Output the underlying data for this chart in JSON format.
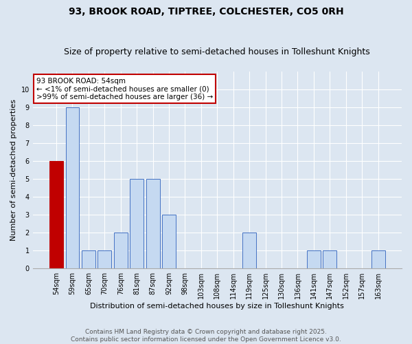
{
  "title": "93, BROOK ROAD, TIPTREE, COLCHESTER, CO5 0RH",
  "subtitle": "Size of property relative to semi-detached houses in Tolleshunt Knights",
  "xlabel": "Distribution of semi-detached houses by size in Tolleshunt Knights",
  "ylabel": "Number of semi-detached properties",
  "categories": [
    "54sqm",
    "59sqm",
    "65sqm",
    "70sqm",
    "76sqm",
    "81sqm",
    "87sqm",
    "92sqm",
    "98sqm",
    "103sqm",
    "108sqm",
    "114sqm",
    "119sqm",
    "125sqm",
    "130sqm",
    "136sqm",
    "141sqm",
    "147sqm",
    "152sqm",
    "157sqm",
    "163sqm"
  ],
  "values": [
    6,
    9,
    1,
    1,
    2,
    5,
    5,
    3,
    0,
    0,
    0,
    0,
    2,
    0,
    0,
    0,
    1,
    1,
    0,
    0,
    1
  ],
  "highlight_index": 0,
  "highlight_color": "#c00000",
  "bar_color": "#c5d9f1",
  "bar_edge_color": "#4472c4",
  "highlight_bar_edge_color": "#c00000",
  "bg_color": "#dce6f1",
  "grid_color": "#ffffff",
  "ylim": [
    0,
    11
  ],
  "yticks": [
    0,
    1,
    2,
    3,
    4,
    5,
    6,
    7,
    8,
    9,
    10,
    11
  ],
  "annotation_text": "93 BROOK ROAD: 54sqm\n← <1% of semi-detached houses are smaller (0)\n>99% of semi-detached houses are larger (36) →",
  "footer_line1": "Contains HM Land Registry data © Crown copyright and database right 2025.",
  "footer_line2": "Contains public sector information licensed under the Open Government Licence v3.0.",
  "title_fontsize": 10,
  "subtitle_fontsize": 9,
  "xlabel_fontsize": 8,
  "ylabel_fontsize": 8,
  "tick_fontsize": 7,
  "footer_fontsize": 6.5
}
